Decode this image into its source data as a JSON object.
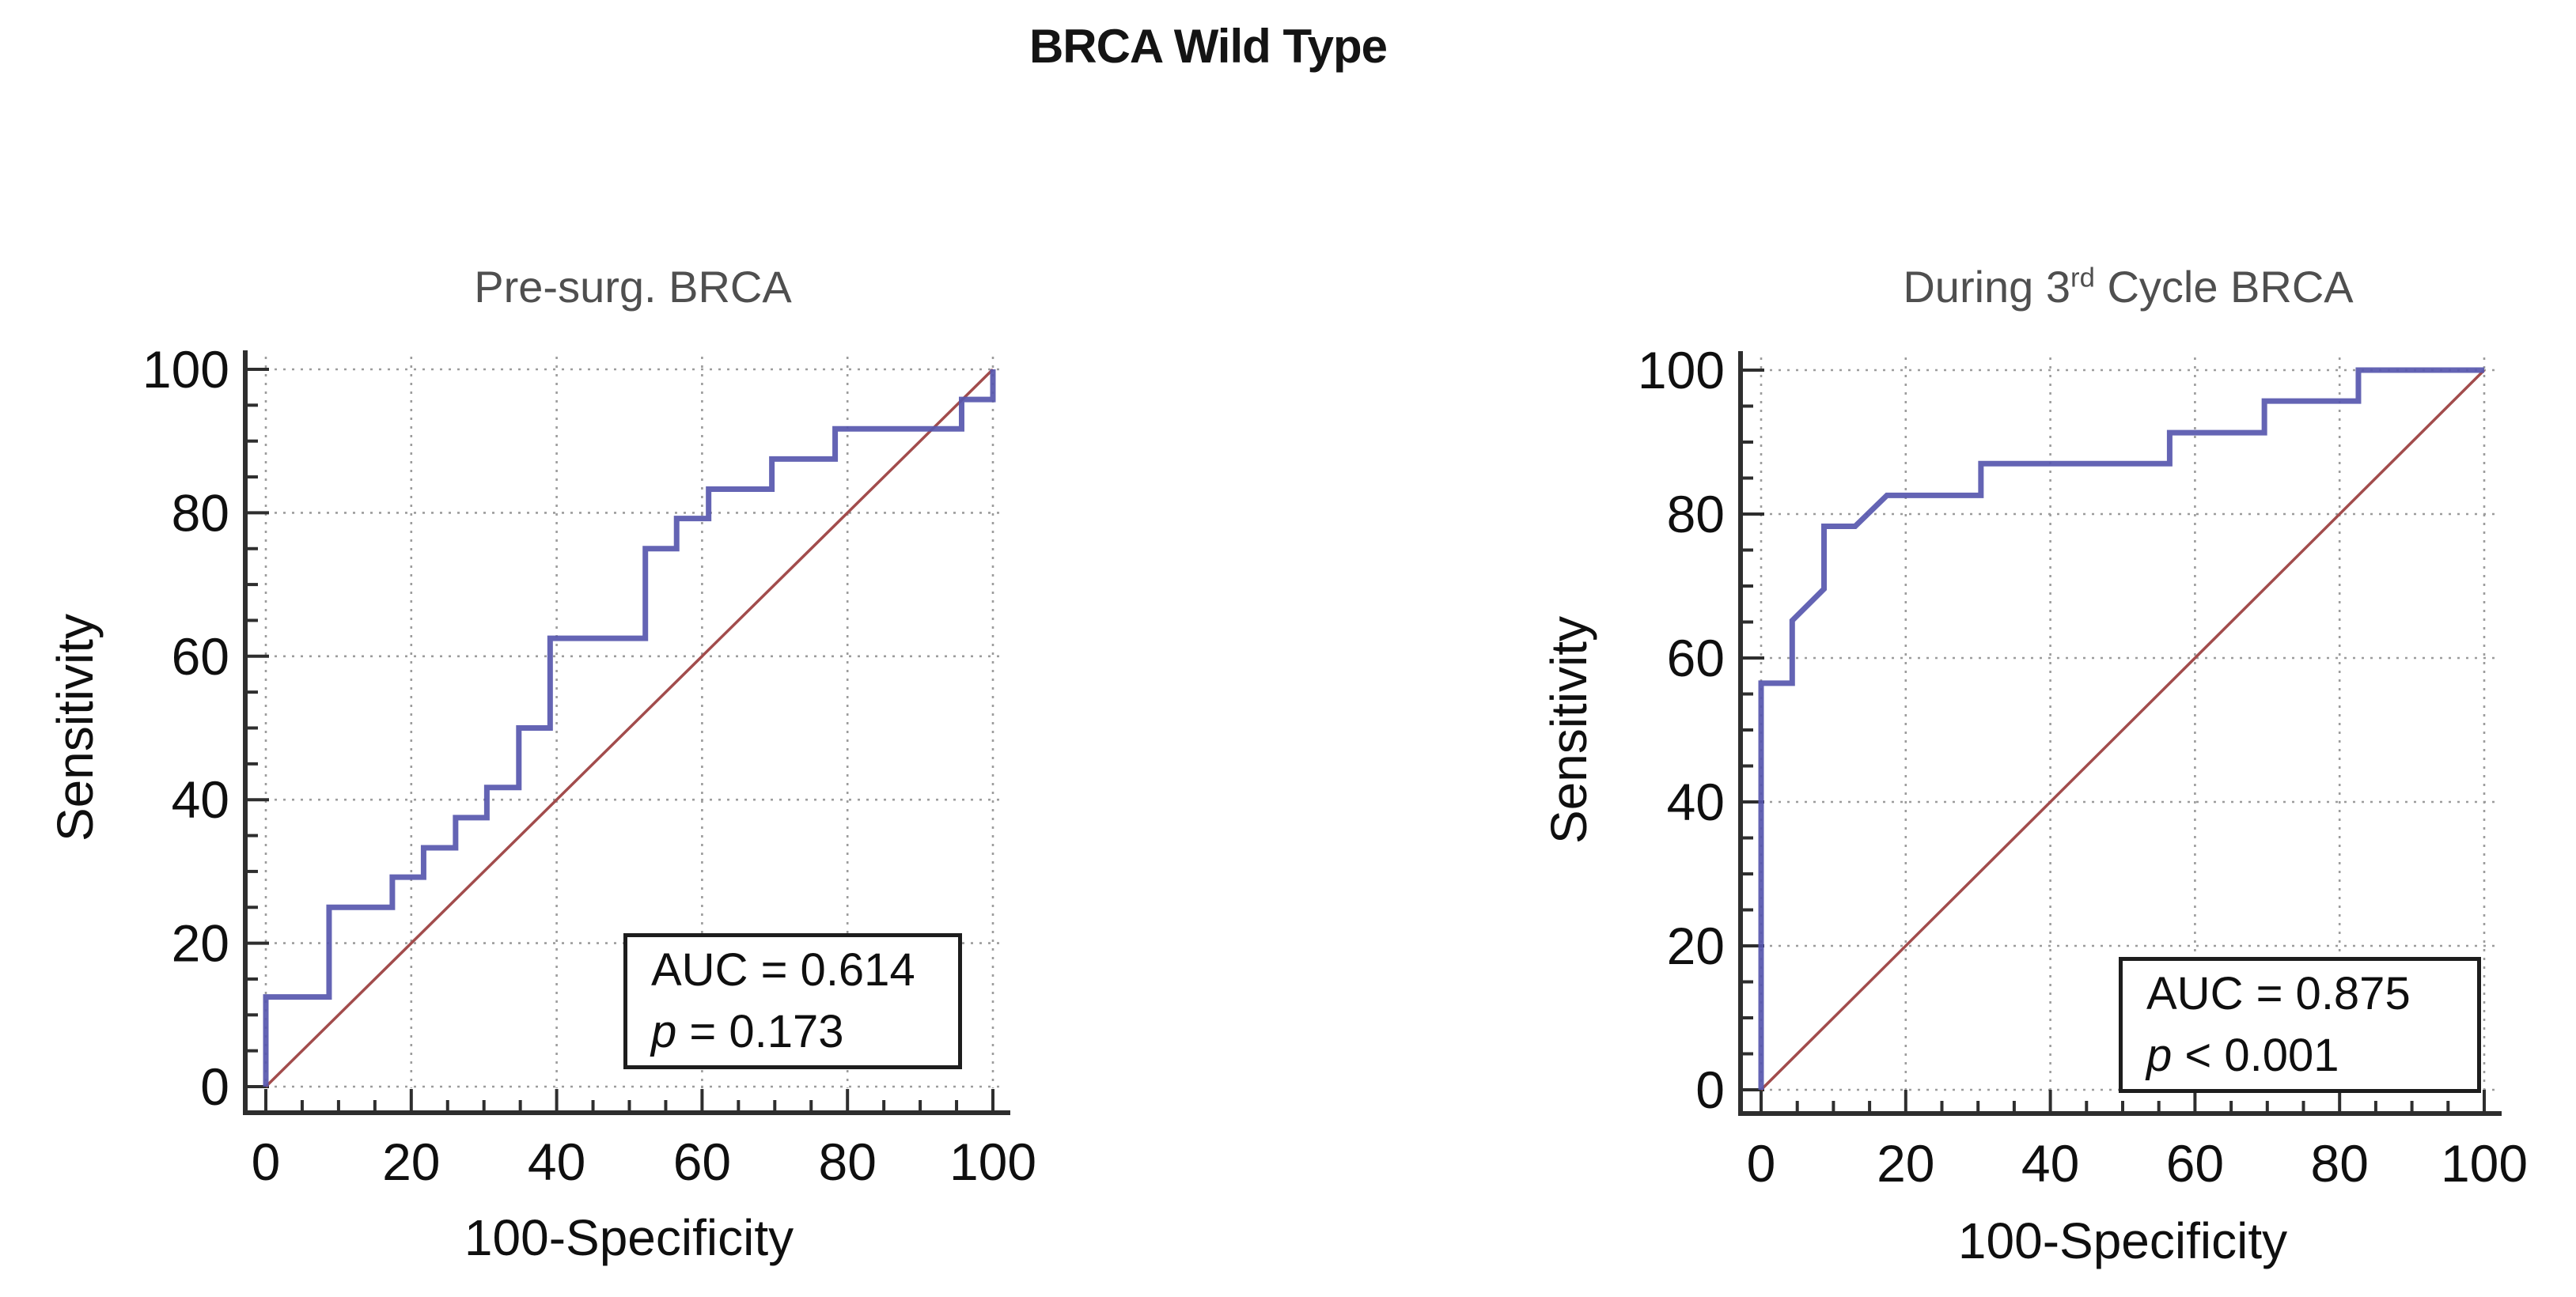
{
  "page": {
    "title": "BRCA Wild Type"
  },
  "colors": {
    "roc_curve": "#5757ae",
    "reference_line": "#a24c4c",
    "grid": "#9c9c9c",
    "spine": "#2e2e2e",
    "tick_label": "#0f0f0f",
    "chart_title": "#4f4f4f",
    "main_title": "#141414"
  },
  "charts": [
    {
      "title": {
        "text": "Pre-surg. BRCA",
        "sup": "",
        "suffix": ""
      },
      "xlabel": "100-Specificity",
      "ylabel": "Sensitivity",
      "stats": {
        "auc": "AUC = 0.614",
        "p_var": "p",
        "p_rest": " = 0.173"
      }
    },
    {
      "title": {
        "text": "During 3",
        "sup": "rd",
        "suffix": " Cycle BRCA"
      },
      "xlabel": "100-Specificity",
      "ylabel": "Sensitivity",
      "stats": {
        "auc": "AUC = 0.875",
        "p_var": "p",
        "p_rest": " < 0.001"
      }
    }
  ],
  "chart_data": [
    {
      "type": "line",
      "subtype": "roc-curve",
      "title": "Pre-surg. BRCA",
      "xlabel": "100-Specificity",
      "ylabel": "Sensitivity",
      "xlim": [
        0,
        100
      ],
      "ylim": [
        0,
        100
      ],
      "xticks": [
        0,
        20,
        40,
        60,
        80,
        100
      ],
      "yticks": [
        0,
        20,
        40,
        60,
        80,
        100
      ],
      "minor_tick_step": 5,
      "grid": "dotted",
      "legend": "none",
      "annotations": {
        "auc": 0.614,
        "p": "0.173"
      },
      "series": [
        {
          "name": "ROC curve",
          "color": "#5757ae",
          "points": [
            [
              0,
              0
            ],
            [
              0,
              12.5
            ],
            [
              8.7,
              12.5
            ],
            [
              8.7,
              25
            ],
            [
              17.4,
              25
            ],
            [
              17.4,
              29.2
            ],
            [
              21.7,
              29.2
            ],
            [
              21.7,
              33.3
            ],
            [
              26.1,
              33.3
            ],
            [
              26.1,
              37.5
            ],
            [
              30.4,
              37.5
            ],
            [
              30.4,
              41.7
            ],
            [
              34.8,
              41.7
            ],
            [
              34.8,
              50
            ],
            [
              39.1,
              50
            ],
            [
              39.1,
              62.5
            ],
            [
              52.2,
              62.5
            ],
            [
              52.2,
              75
            ],
            [
              56.5,
              75
            ],
            [
              56.5,
              79.2
            ],
            [
              60.9,
              79.2
            ],
            [
              60.9,
              83.3
            ],
            [
              69.6,
              83.3
            ],
            [
              69.6,
              87.5
            ],
            [
              78.3,
              87.5
            ],
            [
              78.3,
              91.7
            ],
            [
              95.7,
              91.7
            ],
            [
              95.7,
              95.8
            ],
            [
              100,
              95.8
            ],
            [
              100,
              100
            ]
          ]
        },
        {
          "name": "Reference diagonal",
          "color": "#a24c4c",
          "points": [
            [
              0,
              0
            ],
            [
              100,
              100
            ]
          ]
        }
      ]
    },
    {
      "type": "line",
      "subtype": "roc-curve",
      "title": "During 3rd Cycle BRCA",
      "xlabel": "100-Specificity",
      "ylabel": "Sensitivity",
      "xlim": [
        0,
        100
      ],
      "ylim": [
        0,
        100
      ],
      "xticks": [
        0,
        20,
        40,
        60,
        80,
        100
      ],
      "yticks": [
        0,
        20,
        40,
        60,
        80,
        100
      ],
      "minor_tick_step": 5,
      "grid": "dotted",
      "legend": "none",
      "annotations": {
        "auc": 0.875,
        "p": "< 0.001"
      },
      "series": [
        {
          "name": "ROC curve",
          "color": "#5757ae",
          "points": [
            [
              0,
              0
            ],
            [
              0,
              56.5
            ],
            [
              4.3,
              56.5
            ],
            [
              4.3,
              65.2
            ],
            [
              8.7,
              69.6
            ],
            [
              8.7,
              78.3
            ],
            [
              13,
              78.3
            ],
            [
              17.4,
              82.6
            ],
            [
              30.4,
              82.6
            ],
            [
              30.4,
              87
            ],
            [
              56.5,
              87
            ],
            [
              56.5,
              91.3
            ],
            [
              69.6,
              91.3
            ],
            [
              69.6,
              95.7
            ],
            [
              82.6,
              95.7
            ],
            [
              82.6,
              100
            ],
            [
              100,
              100
            ]
          ]
        },
        {
          "name": "Reference diagonal",
          "color": "#a24c4c",
          "points": [
            [
              0,
              0
            ],
            [
              100,
              100
            ]
          ]
        }
      ]
    }
  ]
}
